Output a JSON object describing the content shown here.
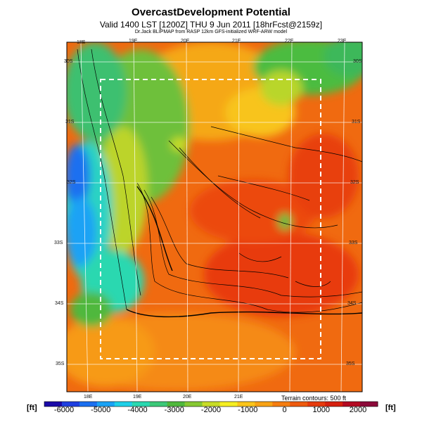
{
  "title": "OvercastDevelopment Potential",
  "subtitle": "Valid 1400 LST [1200Z] THU 9 Jun 2011 [18hrFcst@2159z]",
  "credit": "Dr.Jack BLIPMAP from RASP 12km GFS-initialized WRF-ARW model",
  "terrain_note": "Terrain contours: 500 ft",
  "colorbar": {
    "unit_left": "[ft]",
    "unit_right": "[ft]",
    "ticks": [
      "-6000",
      "-5000",
      "-4000",
      "-3000",
      "-2000",
      "-1000",
      "0",
      "1000",
      "2000"
    ],
    "colors": [
      "#1a0aa8",
      "#1f3fe0",
      "#1b6ff0",
      "#1aa2f5",
      "#1fd0e8",
      "#2ad8b0",
      "#3cc878",
      "#4fb83c",
      "#86c832",
      "#c8dc28",
      "#f5ee22",
      "#fbc51a",
      "#f8a214",
      "#f57d10",
      "#ee5a0d",
      "#e63a0c",
      "#d6200e",
      "#b40a22",
      "#8c0a3a"
    ]
  },
  "map": {
    "longitude_labels_top": [
      "18E",
      "19E",
      "20E",
      "21E",
      "22E",
      "23E"
    ],
    "longitude_labels_bottom": [
      "18E",
      "19E",
      "20E",
      "21E"
    ],
    "latitude_labels_right": [
      "30S",
      "31S",
      "32S",
      "33S",
      "34S",
      "35S"
    ],
    "latitude_labels_left": [
      "30S",
      "31S",
      "32S",
      "33S",
      "34S",
      "35S"
    ]
  }
}
